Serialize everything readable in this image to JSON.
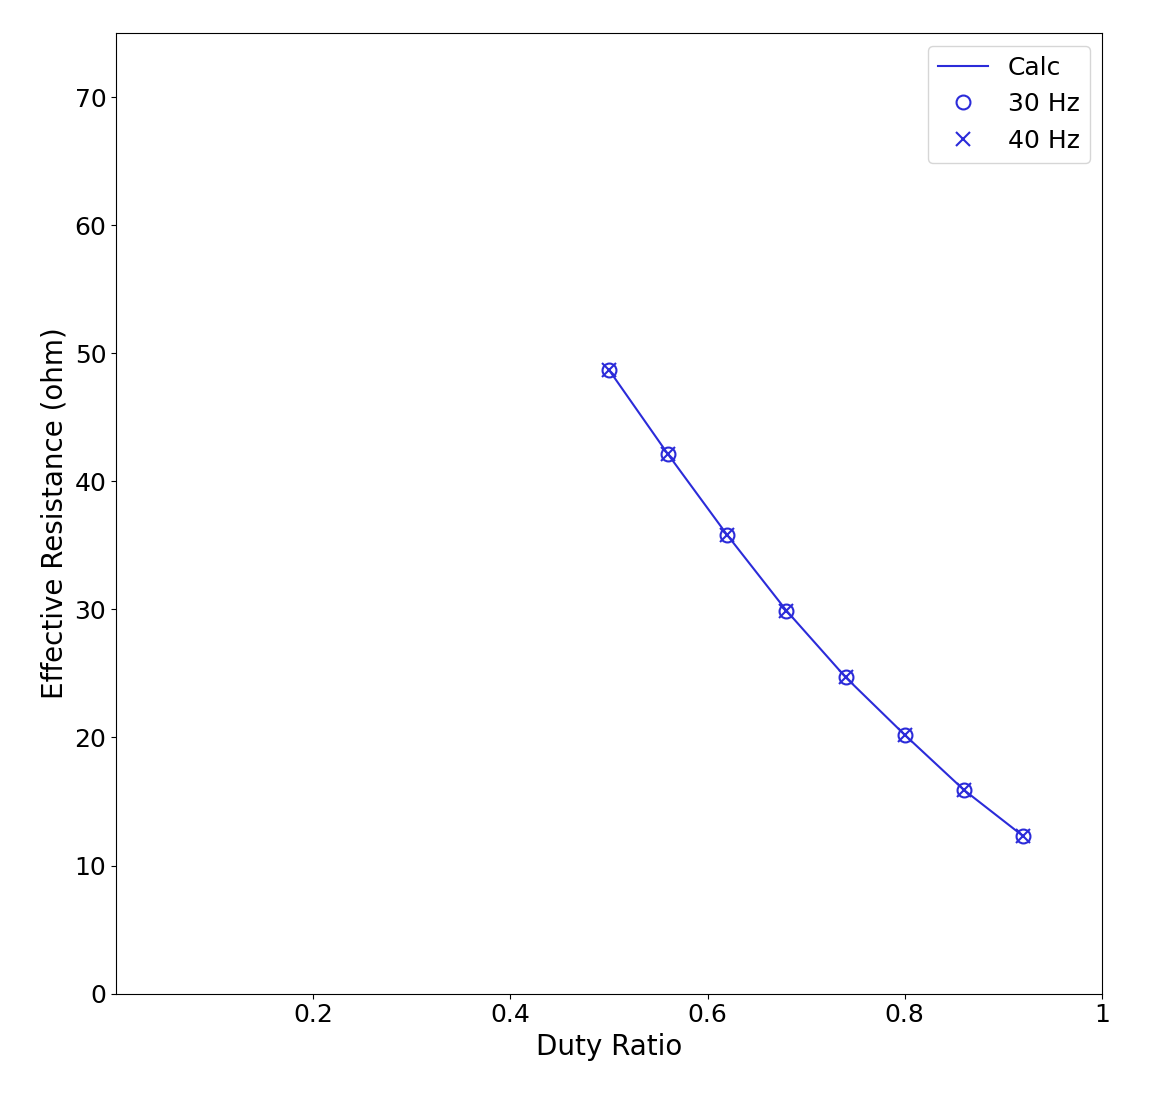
{
  "chart_data": {
    "type": "line",
    "x_label": "Duty Ratio",
    "y_label": "Effective Resistance (ohm)",
    "x": [
      0.5,
      0.56,
      0.62,
      0.68,
      0.74,
      0.8,
      0.86,
      0.92
    ],
    "series": [
      {
        "name": "Calc",
        "color": "#2b2bd9",
        "line_style": "solid",
        "values": [
          48.7,
          42.1,
          35.8,
          29.9,
          24.7,
          20.2,
          15.9,
          12.3
        ]
      },
      {
        "name": "30 Hz",
        "color": "#2b2bd9",
        "marker": "o",
        "line_style": "none",
        "values": [
          48.7,
          42.1,
          35.8,
          29.9,
          24.7,
          20.2,
          15.9,
          12.3
        ]
      },
      {
        "name": "40 Hz",
        "color": "#2b2bd9",
        "marker": "x",
        "line_style": "none",
        "values": [
          48.7,
          42.1,
          35.8,
          29.9,
          24.7,
          20.2,
          15.9,
          12.3
        ]
      }
    ],
    "xlim": [
      0,
      1
    ],
    "xticks": [
      0.2,
      0.4,
      0.6,
      0.8,
      1
    ],
    "ylim": [
      0,
      75
    ],
    "yticks": [
      0,
      10,
      20,
      30,
      40,
      50,
      60,
      70
    ],
    "legend": "upper right",
    "grid": false
  }
}
